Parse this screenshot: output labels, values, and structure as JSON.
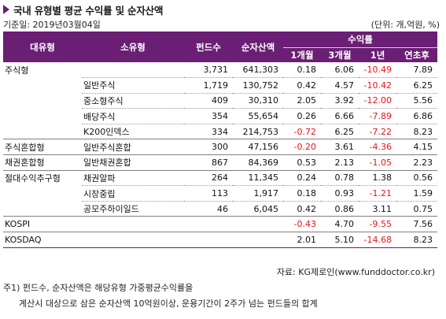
{
  "title": "국내 유형별 평균 수익률 및 순자산액",
  "date_label": "기준일: 2019년03월04일",
  "unit_label": "(단위: 개,억원, %)",
  "headers": {
    "major_type": "대유형",
    "sub_type": "소유형",
    "fund_count": "펀드수",
    "net_assets": "순자산액",
    "returns": "수익률",
    "m1": "1개월",
    "m3": "3개월",
    "y1": "1년",
    "ytd": "연초후"
  },
  "rows": [
    {
      "major": "주식형",
      "sub": "",
      "count": "3,731",
      "assets": "641,303",
      "m1": "0.18",
      "m3": "6.06",
      "y1": "-10.49",
      "ytd": "7.89"
    },
    {
      "major": "",
      "sub": "일반주식",
      "count": "1,719",
      "assets": "130,752",
      "m1": "0.42",
      "m3": "4.57",
      "y1": "-10.42",
      "ytd": "6.25"
    },
    {
      "major": "",
      "sub": "중소형주식",
      "count": "409",
      "assets": "30,310",
      "m1": "2.05",
      "m3": "3.92",
      "y1": "-12.00",
      "ytd": "5.56"
    },
    {
      "major": "",
      "sub": "배당주식",
      "count": "354",
      "assets": "55,654",
      "m1": "0.26",
      "m3": "6.66",
      "y1": "-7.89",
      "ytd": "6.86"
    },
    {
      "major": "",
      "sub": "K200인덱스",
      "count": "334",
      "assets": "214,753",
      "m1": "-0.72",
      "m3": "6.25",
      "y1": "-7.22",
      "ytd": "8.23"
    },
    {
      "major": "주식혼합형",
      "sub": "일반주식혼합",
      "count": "300",
      "assets": "47,156",
      "m1": "-0.20",
      "m3": "3.61",
      "y1": "-4.36",
      "ytd": "4.15"
    },
    {
      "major": "채권혼합형",
      "sub": "일반채권혼합",
      "count": "867",
      "assets": "84,369",
      "m1": "0.53",
      "m3": "2.13",
      "y1": "-1.05",
      "ytd": "2.23"
    },
    {
      "major": "절대수익추구형",
      "sub": "채권알파",
      "count": "264",
      "assets": "11,345",
      "m1": "0.24",
      "m3": "0.78",
      "y1": "1.38",
      "ytd": "0.56"
    },
    {
      "major": "",
      "sub": "시장중립",
      "count": "113",
      "assets": "1,917",
      "m1": "0.18",
      "m3": "0.93",
      "y1": "-1.21",
      "ytd": "1.59"
    },
    {
      "major": "",
      "sub": "공모주하이일드",
      "count": "46",
      "assets": "6,045",
      "m1": "0.42",
      "m3": "0.86",
      "y1": "3.11",
      "ytd": "0.75"
    },
    {
      "major": "KOSPI",
      "sub": "",
      "count": "",
      "assets": "",
      "m1": "-0.43",
      "m3": "4.70",
      "y1": "-9.55",
      "ytd": "7.56"
    },
    {
      "major": "KOSDAQ",
      "sub": "",
      "count": "",
      "assets": "",
      "m1": "2.01",
      "m3": "5.10",
      "y1": "-14.68",
      "ytd": "8.23"
    }
  ],
  "source": "자료: KG제로인(www.funddoctor.co.kr)",
  "note_line1": "주1) 펀드수, 순자산액은 해당유형 가중평균수익률을",
  "note_line2": "계산시 대상으로 삼은 순자산액 10억원이상, 운용기간이 2주가 넘는 펀드들의 합계",
  "colors": {
    "header_bg": "#6a1e74",
    "negative": "#e8141a",
    "marker": "#6a1e74"
  }
}
